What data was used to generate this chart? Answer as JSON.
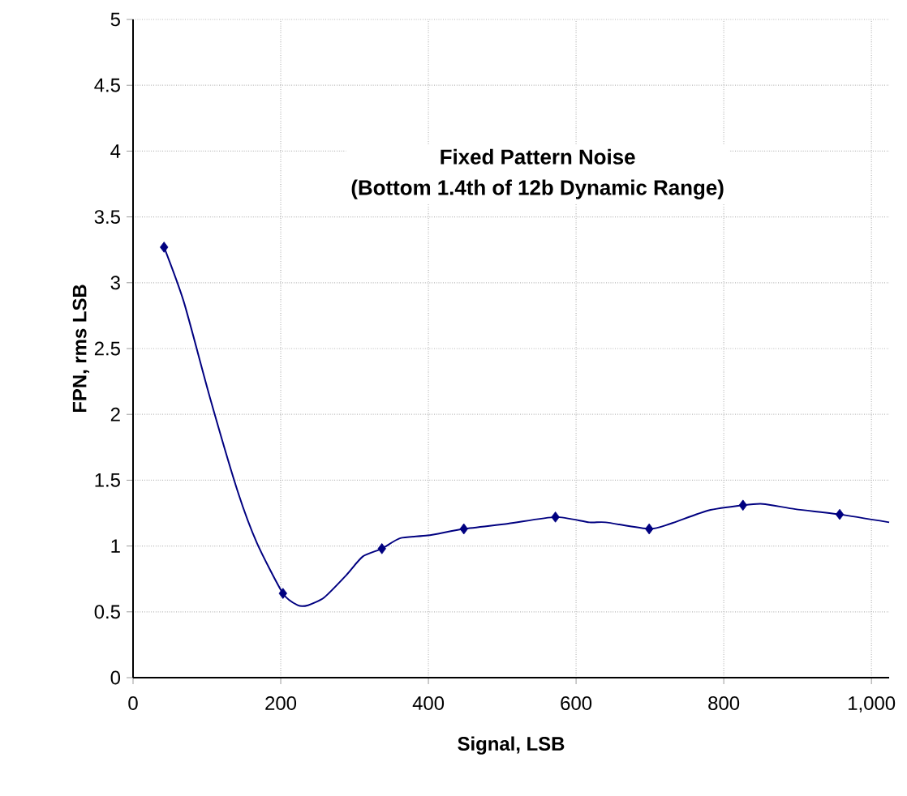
{
  "chart_data": {
    "type": "line",
    "title": "Fixed Pattern Noise",
    "subtitle": "(Bottom 1.4th of 12b Dynamic Range)",
    "xlabel": "Signal, LSB",
    "ylabel": "FPN, rms LSB",
    "xlim": [
      0,
      1024
    ],
    "ylim": [
      0,
      5
    ],
    "xticks": [
      0,
      200,
      400,
      600,
      800,
      {
        "value": 1000,
        "label": "1,000"
      }
    ],
    "yticks": [
      0,
      0.5,
      1,
      1.5,
      2,
      2.5,
      3,
      3.5,
      4,
      4.5,
      5
    ],
    "grid": true,
    "series": [
      {
        "color": "#000080",
        "marker": "none",
        "line_style": "solid",
        "x": [
          42,
          69,
          105,
          142,
          168,
          203,
          223,
          237,
          259,
          289,
          311,
          337,
          362,
          399,
          448,
          508,
          572,
          618,
          640,
          699,
          728,
          779,
          826,
          853,
          897,
          957,
          1024
        ],
        "values": [
          3.27,
          2.85,
          2.11,
          1.41,
          1.02,
          0.64,
          0.55,
          0.55,
          0.61,
          0.78,
          0.92,
          0.98,
          1.06,
          1.08,
          1.13,
          1.17,
          1.22,
          1.18,
          1.18,
          1.13,
          1.17,
          1.27,
          1.31,
          1.32,
          1.28,
          1.24,
          1.18
        ]
      },
      {
        "type": "scatter",
        "color": "#000080",
        "marker": "diamond",
        "x": [
          42,
          203,
          337,
          448,
          572,
          699,
          826,
          957
        ],
        "values": [
          3.27,
          0.64,
          0.98,
          1.13,
          1.22,
          1.13,
          1.31,
          1.24
        ]
      }
    ]
  }
}
